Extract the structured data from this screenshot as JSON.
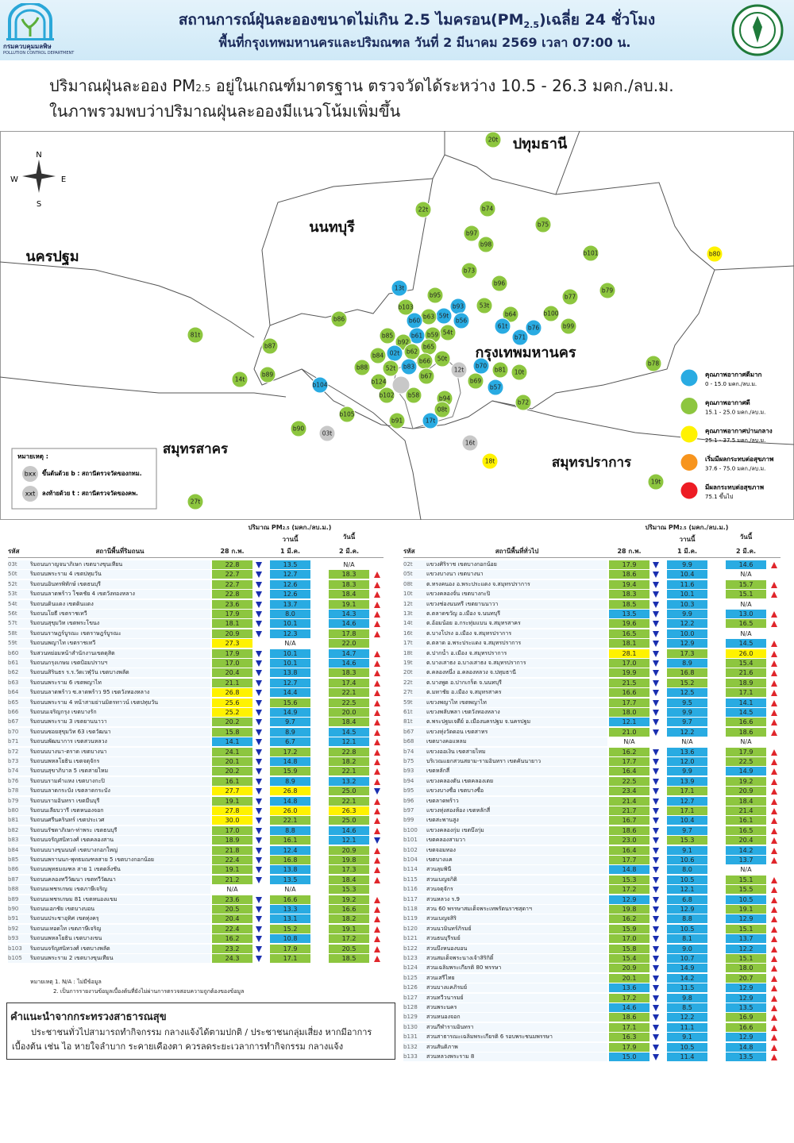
{
  "header": {
    "title_parts": [
      "สถานการณ์ฝุ่นละอองขนาดไม่เกิน 2.5 ไมครอน(PM",
      "2.5",
      ")เฉลี่ย 24 ชั่วโมง"
    ],
    "subtitle": "พื้นที่กรุงเทพมหานครและปริมณฑล วันที่ 2 มีนาคม 2569 เวลา 07:00 น.",
    "logo_th": "กรมควบคุมมลพิษ",
    "logo_en": "POLLUTION CONTROL DEPARTMENT"
  },
  "summary": {
    "line1_parts": [
      "ปริมาณฝุ่นละออง PM",
      "2.5",
      " อยู่ในเกณฑ์มาตรฐาน ตรวจวัดได้ระหว่าง 10.5 - 26.3 มคก./ลบ.ม."
    ],
    "line2": "ในภาพรวมพบว่าปริมาณฝุ่นละอองมีแนวโน้มเพิ่มขึ้น"
  },
  "map": {
    "regions": [
      "ปทุมธานี",
      "นนทบุรี",
      "นครปฐม",
      "กรุงเทพมหานคร",
      "สมุทรสาคร",
      "สมุทรปราการ"
    ],
    "compass": [
      "N",
      "W",
      "E",
      "S"
    ],
    "stations": [
      {
        "code": "20t",
        "color": "#8dc63f"
      },
      {
        "code": "22t",
        "color": "#8dc63f"
      },
      {
        "code": "b74",
        "color": "#8dc63f"
      },
      {
        "code": "b75",
        "color": "#8dc63f"
      },
      {
        "code": "b97",
        "color": "#8dc63f"
      },
      {
        "code": "b98",
        "color": "#8dc63f"
      },
      {
        "code": "b101",
        "color": "#8dc63f"
      },
      {
        "code": "b80",
        "color": "#fff200"
      },
      {
        "code": "b73",
        "color": "#8dc63f"
      },
      {
        "code": "13t",
        "color": "#29abe2"
      },
      {
        "code": "b96",
        "color": "#8dc63f"
      },
      {
        "code": "b95",
        "color": "#8dc63f"
      },
      {
        "code": "b77",
        "color": "#8dc63f"
      },
      {
        "code": "b79",
        "color": "#8dc63f"
      },
      {
        "code": "b103",
        "color": "#8dc63f"
      },
      {
        "code": "b93",
        "color": "#29abe2"
      },
      {
        "code": "53t",
        "color": "#8dc63f"
      },
      {
        "code": "59t",
        "color": "#29abe2"
      },
      {
        "code": "b56",
        "color": "#29abe2"
      },
      {
        "code": "b63",
        "color": "#8dc63f"
      },
      {
        "code": "b60",
        "color": "#29abe2"
      },
      {
        "code": "b86",
        "color": "#8dc63f"
      },
      {
        "code": "b64",
        "color": "#8dc63f"
      },
      {
        "code": "b100",
        "color": "#8dc63f"
      },
      {
        "code": "b76",
        "color": "#29abe2"
      },
      {
        "code": "61t",
        "color": "#29abe2"
      },
      {
        "code": "b99",
        "color": "#8dc63f"
      },
      {
        "code": "54t",
        "color": "#8dc63f"
      },
      {
        "code": "b59",
        "color": "#8dc63f"
      },
      {
        "code": "b61",
        "color": "#29abe2"
      },
      {
        "code": "b85",
        "color": "#8dc63f"
      },
      {
        "code": "81t",
        "color": "#8dc63f"
      },
      {
        "code": "b92",
        "color": "#8dc63f"
      },
      {
        "code": "b87",
        "color": "#8dc63f"
      },
      {
        "code": "b65",
        "color": "#8dc63f"
      },
      {
        "code": "b71",
        "color": "#29abe2"
      },
      {
        "code": "b62",
        "color": "#8dc63f"
      },
      {
        "code": "02t",
        "color": "#29abe2"
      },
      {
        "code": "b84",
        "color": "#8dc63f"
      },
      {
        "code": "50t",
        "color": "#8dc63f"
      },
      {
        "code": "b66",
        "color": "#8dc63f"
      },
      {
        "code": "b78",
        "color": "#8dc63f"
      },
      {
        "code": "b88",
        "color": "#8dc63f"
      },
      {
        "code": "52t",
        "color": "#8dc63f"
      },
      {
        "code": "b83",
        "color": "#29abe2"
      },
      {
        "code": "b70",
        "color": "#29abe2"
      },
      {
        "code": "b81",
        "color": "#8dc63f"
      },
      {
        "code": "10t",
        "color": "#8dc63f"
      },
      {
        "code": "12t",
        "color": "#c8c8c8"
      },
      {
        "code": "b67",
        "color": "#8dc63f"
      },
      {
        "code": "b89",
        "color": "#8dc63f"
      },
      {
        "code": "14t",
        "color": "#8dc63f"
      },
      {
        "code": "b124",
        "color": "#8dc63f"
      },
      {
        "code": "b69",
        "color": "#8dc63f"
      },
      {
        "code": "b57",
        "color": "#29abe2"
      },
      {
        "code": "b104",
        "color": "#29abe2"
      },
      {
        "code": "b102",
        "color": "#8dc63f"
      },
      {
        "code": "b58",
        "color": "#8dc63f"
      },
      {
        "code": "b94",
        "color": "#8dc63f"
      },
      {
        "code": "b72",
        "color": "#8dc63f"
      },
      {
        "code": "08t",
        "color": "#8dc63f"
      },
      {
        "code": "b105",
        "color": "#8dc63f"
      },
      {
        "code": "b91",
        "color": "#8dc63f"
      },
      {
        "code": "17t",
        "color": "#29abe2"
      },
      {
        "code": "b90",
        "color": "#8dc63f"
      },
      {
        "code": "03t",
        "color": "#c8c8c8"
      },
      {
        "code": "16t",
        "color": "#c8c8c8"
      },
      {
        "code": "18t",
        "color": "#fff200"
      },
      {
        "code": "19t",
        "color": "#8dc63f"
      },
      {
        "code": "27t",
        "color": "#8dc63f"
      }
    ],
    "legend": {
      "items": [
        {
          "label": "คุณภาพอากาศดีมาก",
          "range": "0 - 15.0 มคก./ลบ.ม.",
          "color": "#29abe2",
          "max": 15
        },
        {
          "label": "คุณภาพอากาศดี",
          "range": "15.1 - 25.0 มคก./ลบ.ม.",
          "color": "#8dc63f",
          "max": 25
        },
        {
          "label": "คุณภาพอากาศปานกลาง",
          "range": "25.1 - 37.5 มคก./ลบ.ม.",
          "color": "#fff200",
          "max": 37.5
        },
        {
          "label": "เริ่มมีผลกระทบต่อสุขภาพ",
          "range": "37.6 - 75.0 มคก./ลบ.ม.",
          "color": "#f7941d",
          "max": 75
        },
        {
          "label": "มีผลกระทบต่อสุขภาพ",
          "range": "75.1 ขึ้นไป",
          "color": "#ed1c24"
        }
      ]
    },
    "notes": {
      "title": "หมายเหตุ :",
      "items": [
        {
          "symbol": "bxx",
          "text": "ขึ้นต้นด้วย b : สถานีตรวจวัดของกทม."
        },
        {
          "symbol": "xxt",
          "text": "ลงท้ายด้วย t : สถานีตรวจวัดของคพ."
        }
      ]
    }
  },
  "tables": [
    {
      "header": {
        "code": "รหัส",
        "station": "สถานีพื้นที่ริมถนน",
        "unit_parts": [
          "ปริมาณ PM",
          "2.5",
          " (มคก./ลบ.ม.)"
        ],
        "d1": "28 ก.พ.",
        "yesterday": "วานนี้",
        "d2": "1 มี.ค.",
        "today": "วันนี้",
        "d3": "2 มี.ค."
      },
      "rows": [
        [
          "03t",
          "ริมถนนกาญจนาภิเษก เขตบางขุนเทียน",
          "22.8",
          "13.5",
          "N/A"
        ],
        [
          "50t",
          "ริมถนนพระราม 4 เขตปทุมวัน",
          "22.7",
          "12.7",
          "18.3"
        ],
        [
          "52t",
          "ริมถนนอินทรพิทักษ์ เขตธนบุรี",
          "22.7",
          "12.6",
          "18.3"
        ],
        [
          "53t",
          "ริมถนนลาดพร้าว โชคชัย 4 เขตวังทองหลาง",
          "22.8",
          "12.6",
          "18.4"
        ],
        [
          "54t",
          "ริมถนนดินแดง เขตดินแดง",
          "23.6",
          "13.7",
          "19.1"
        ],
        [
          "56t",
          "ริมถนนโยธี เขตราชเทวี",
          "17.9",
          "8.0",
          "14.3"
        ],
        [
          "57t",
          "ริมถนนสุขุมวิท เขตพระโขนง",
          "18.1",
          "10.1",
          "14.6"
        ],
        [
          "58t",
          "ริมถนนราษฎร์บูรณะ เขตราษฎร์บูรณะ",
          "20.9",
          "12.3",
          "17.8"
        ],
        [
          "59t",
          "ริมถนนพญาไท เขตราชเทวี",
          "27.3",
          "N/A",
          "22.0"
        ],
        [
          "b60",
          "ริมสวนหย่อมหน้าสำนักงานเขตดุสิต",
          "17.9",
          "10.1",
          "14.7"
        ],
        [
          "b61",
          "ริมถนนกรุงเกษม เขตป้อมปราบฯ",
          "17.0",
          "10.1",
          "14.6"
        ],
        [
          "b62",
          "ริมถนนสิรินธร ร.ร.วัดเวฬุวัน เขตบางพลัด",
          "20.4",
          "13.8",
          "18.3"
        ],
        [
          "b63",
          "ริมถนนพระราม 6 เขตพญาไท",
          "21.1",
          "12.7",
          "17.4"
        ],
        [
          "b64",
          "ริมถนนลาดพร้าว ซ.ลาดพร้าว 95 เขตวังทองหลาง",
          "26.8",
          "14.4",
          "22.1"
        ],
        [
          "b65",
          "ริมถนนพระราม 4 หน้าสามย่านมิตรทาวน์ เขตปทุมวัน",
          "25.6",
          "15.6",
          "22.5"
        ],
        [
          "b66",
          "ริมถนนเจริญกรุง เขตบางรัก",
          "25.2",
          "14.9",
          "20.0"
        ],
        [
          "b67",
          "ริมถนนพระราม 3 เขตยานนาวา",
          "20.2",
          "9.7",
          "18.4"
        ],
        [
          "b70",
          "ริมถนนซอยสุขุมวิท 63 เขตวัฒนา",
          "15.8",
          "8.9",
          "14.5"
        ],
        [
          "b71",
          "ริมถนนพัฒนาการ เขตสวนหลวง",
          "14.1",
          "6.7",
          "12.1"
        ],
        [
          "b72",
          "ริมถนนบางนา-ตราด เขตบางนา",
          "24.1",
          "17.2",
          "22.8"
        ],
        [
          "b73",
          "ริมถนนพหลโยธิน เขตจตุจักร",
          "20.1",
          "14.8",
          "18.2"
        ],
        [
          "b74",
          "ริมถนนสุขาภิบาล 5 เขตสายไหม",
          "20.2",
          "15.9",
          "22.1"
        ],
        [
          "b76",
          "ริมถนนรามคำแหง เขตบางกะปิ",
          "16.1",
          "8.9",
          "13.2"
        ],
        [
          "b78",
          "ริมถนนลาดกระบัง เขตลาดกระบัง",
          "27.7",
          "26.8",
          "25.0"
        ],
        [
          "b79",
          "ริมถนนรามอินทรา เขตมีนบุรี",
          "19.1",
          "14.8",
          "22.1"
        ],
        [
          "b80",
          "ริมถนนเลียบวารี เขตหนองจอก",
          "27.8",
          "26.0",
          "26.3"
        ],
        [
          "b81",
          "ริมถนนศรีนครินทร์ เขตประเวศ",
          "30.0",
          "22.1",
          "25.0"
        ],
        [
          "b82",
          "ริมถนนรัชดาภิเษก-ท่าพระ เขตธนบุรี",
          "17.0",
          "8.8",
          "14.6"
        ],
        [
          "b83",
          "ริมถนนจรัญสนิทวงศ์ เขตคลองสาน",
          "18.9",
          "16.1",
          "12.1"
        ],
        [
          "b84",
          "ริมถนนบางขุนนนท์ เขตบางกอกใหญ่",
          "21.8",
          "12.4",
          "20.9"
        ],
        [
          "b85",
          "ริมถนนพรานนก-พุทธมณฑลสาย 5 เขตบางกอกน้อย",
          "22.4",
          "16.8",
          "19.8"
        ],
        [
          "b86",
          "ริมถนนพุทธมณฑล สาย 1 เขตตลิ่งชัน",
          "19.1",
          "13.8",
          "17.3"
        ],
        [
          "b87",
          "ริมถนนคลองทวีวัฒนา เขตทวีวัฒนา",
          "21.2",
          "13.5",
          "18.4"
        ],
        [
          "b88",
          "ริมถนนเพชรเกษม เขตภาษีเจริญ",
          "N/A",
          "N/A",
          "15.3"
        ],
        [
          "b89",
          "ริมถนนเพชรเกษม 81 เขตหนองแขม",
          "23.6",
          "16.6",
          "19.2"
        ],
        [
          "b90",
          "ริมถนนเอกชัย เขตบางบอน",
          "20.5",
          "13.3",
          "16.6"
        ],
        [
          "b91",
          "ริมถนนประชาอุทิศ เขตทุ่งครุ",
          "20.4",
          "13.1",
          "18.2"
        ],
        [
          "b92",
          "ริมถนนเทอดไท เขตภาษีเจริญ",
          "22.4",
          "15.2",
          "19.1"
        ],
        [
          "b93",
          "ริมถนนพหลโยธิน เขตบางเขน",
          "16.2",
          "10.8",
          "17.2"
        ],
        [
          "b103",
          "ริมถนนจรัญสนิทวงศ์ เขตบางพลัด",
          "23.2",
          "17.9",
          "20.5"
        ],
        [
          "b105",
          "ริมถนนพระราม 2 เขตบางขุนเทียน",
          "24.3",
          "17.1",
          "18.5"
        ]
      ]
    },
    {
      "header": {
        "code": "รหัส",
        "station": "สถานีพื้นที่ทั่วไป",
        "unit_parts": [
          "ปริมาณ PM",
          "2.5",
          " (มคก./ลบ.ม.)"
        ],
        "d1": "28 ก.พ.",
        "yesterday": "วานนี้",
        "d2": "1 มี.ค.",
        "today": "วันนี้",
        "d3": "2 มี.ค."
      },
      "rows": [
        [
          "02t",
          "แขวงศิริราช เขตบางกอกน้อย",
          "17.9",
          "9.9",
          "14.6"
        ],
        [
          "05t",
          "แขวงบางนา เขตบางนา",
          "18.6",
          "10.4",
          "N/A"
        ],
        [
          "08t",
          "ต.ทรงคนอง อ.พระประแดง จ.สมุทรปราการ",
          "19.4",
          "11.6",
          "15.7"
        ],
        [
          "10t",
          "แขวงคลองจั่น เขตบางกะปิ",
          "18.3",
          "10.1",
          "15.1"
        ],
        [
          "12t",
          "แขวงช่องนนทรี เขตยานนาวา",
          "18.5",
          "10.3",
          "N/A"
        ],
        [
          "13t",
          "ต.ตลาดขวัญ อ.เมือง จ.นนทบุรี",
          "13.5",
          "9.9",
          "13.0"
        ],
        [
          "14t",
          "ต.อ้อมน้อย อ.กระทุ่มแบน จ.สมุทรสาคร",
          "19.6",
          "12.2",
          "16.5"
        ],
        [
          "16t",
          "ต.บางโปรง อ.เมือง จ.สมุทรปราการ",
          "16.5",
          "10.0",
          "N/A"
        ],
        [
          "17t",
          "ต.ตลาด อ.พระประแดง จ.สมุทรปราการ",
          "18.1",
          "12.9",
          "14.5"
        ],
        [
          "18t",
          "ต.ปากน้ำ อ.เมือง จ.สมุทรปราการ",
          "28.1",
          "17.3",
          "26.0"
        ],
        [
          "19t",
          "ต.บางเสาธง อ.บางเสาธง จ.สมุทรปราการ",
          "17.0",
          "8.9",
          "15.4"
        ],
        [
          "20t",
          "ต.คลองหนึ่ง อ.คลองหลวง จ.ปทุมธานี",
          "19.9",
          "16.8",
          "21.6"
        ],
        [
          "22t",
          "ต.บางพูด อ.ปากเกร็ด จ.นนทบุรี",
          "21.5",
          "15.2",
          "18.9"
        ],
        [
          "27t",
          "ต.มหาชัย อ.เมือง จ.สมุทรสาคร",
          "16.6",
          "12.5",
          "17.1"
        ],
        [
          "59t",
          "แขวงพญาไท เขตพญาไท",
          "17.7",
          "9.5",
          "14.1"
        ],
        [
          "61t",
          "แขวงพลับพลา เขตวังทองหลาง",
          "18.0",
          "9.9",
          "14.5"
        ],
        [
          "81t",
          "ต.พระปฐมเจดีย์ อ.เมืองนครปฐม จ.นครปฐม",
          "12.1",
          "9.7",
          "16.6"
        ],
        [
          "b67",
          "แขวงทุ่งวัดดอน เขตสาทร",
          "21.0",
          "12.2",
          "18.6"
        ],
        [
          "b68",
          "เขตบางคอแหลม",
          "N/A",
          "N/A",
          "N/A"
        ],
        [
          "b74",
          "แขวงออเงิน เขตสายไหม",
          "16.2",
          "13.6",
          "17.9"
        ],
        [
          "b75",
          "บริเวณแยกสวนสยาม-รามอินทรา เขตคันนายาว",
          "17.7",
          "12.0",
          "22.5"
        ],
        [
          "b93",
          "เขตหลักสี่",
          "16.4",
          "9.9",
          "14.9"
        ],
        [
          "b94",
          "แขวงคลองตัน เขตคลองเตย",
          "22.5",
          "13.9",
          "19.2"
        ],
        [
          "b95",
          "แขวงบางซื่อ เขตบางซื่อ",
          "23.4",
          "17.1",
          "20.9"
        ],
        [
          "b96",
          "เขตลาดพร้าว",
          "21.4",
          "12.7",
          "18.4"
        ],
        [
          "b97",
          "แขวงทุ่งสองห้อง เขตหลักสี่",
          "21.7",
          "17.1",
          "21.4"
        ],
        [
          "b99",
          "เขตสะพานสูง",
          "16.7",
          "10.4",
          "16.1"
        ],
        [
          "b100",
          "แขวงคลองกุ่ม เขตบึงกุ่ม",
          "18.6",
          "9.7",
          "16.5"
        ],
        [
          "b101",
          "เขตคลองสามวา",
          "23.0",
          "15.3",
          "20.4"
        ],
        [
          "b102",
          "เขตจอมทอง",
          "16.4",
          "9.1",
          "14.2"
        ],
        [
          "b104",
          "เขตบางแค",
          "17.7",
          "10.6",
          "13.7"
        ],
        [
          "b114",
          "สวนลุมพินี",
          "14.8",
          "8.0",
          "N/A"
        ],
        [
          "b115",
          "สวนเบญจกิติ",
          "15.3",
          "10.5",
          "15.1"
        ],
        [
          "b116",
          "สวนจตุจักร",
          "17.2",
          "12.1",
          "15.5"
        ],
        [
          "b117",
          "สวนหลวง ร.9",
          "12.9",
          "6.8",
          "10.5"
        ],
        [
          "b118",
          "สวน 60 พรรษาสมเด็จพระเทพรัตนราชสุดาฯ",
          "19.8",
          "12.9",
          "19.1"
        ],
        [
          "b119",
          "สวนเบญจสิริ",
          "16.2",
          "8.8",
          "12.9"
        ],
        [
          "b120",
          "สวนนวมินทร์ภิรมย์",
          "15.9",
          "10.5",
          "15.1"
        ],
        [
          "b121",
          "สวนธนบุรีรมย์",
          "17.0",
          "8.1",
          "13.7"
        ],
        [
          "b122",
          "สวนบึงหนองบอน",
          "15.8",
          "9.0",
          "12.2"
        ],
        [
          "b123",
          "สวนสมเด็จพระนางเจ้าสิริกิติ์",
          "15.4",
          "10.7",
          "15.1"
        ],
        [
          "b124",
          "สวนเฉลิมพระเกียรติ 80 พรรษา",
          "20.9",
          "14.9",
          "18.0"
        ],
        [
          "b125",
          "สวนเสรีไทย",
          "20.1",
          "14.2",
          "20.7"
        ],
        [
          "b126",
          "สวนบางแคภิรมย์",
          "13.6",
          "11.5",
          "12.9"
        ],
        [
          "b127",
          "สวนทวีวนารมย์",
          "17.2",
          "9.8",
          "12.9"
        ],
        [
          "b128",
          "สวนพระนคร",
          "14.6",
          "8.5",
          "13.5"
        ],
        [
          "b129",
          "สวนหนองจอก",
          "18.6",
          "12.2",
          "16.9"
        ],
        [
          "b130",
          "สวนกีฬารามอินทรา",
          "17.1",
          "11.1",
          "16.6"
        ],
        [
          "b131",
          "สวนสาธารณะเฉลิมพระเกียรติ 6 รอบพระชนมพรรษา",
          "16.3",
          "9.1",
          "12.9"
        ],
        [
          "b132",
          "สวนสันติภาพ",
          "17.9",
          "10.5",
          "14.8"
        ],
        [
          "b133",
          "สวนหลวงพระราม 8",
          "15.0",
          "11.4",
          "13.5"
        ]
      ]
    }
  ],
  "table_notes": [
    "หมายเหตุ 1. N/A : ไม่มีข้อมูล",
    "2. เป็นการรายงานข้อมูลเบื้องต้นที่ยังไม่ผ่านการตรวจสอบความถูกต้องของข้อมูล"
  ],
  "advice": {
    "title": "คำแนะนำจากกระทรวงสาธารณสุข",
    "text": "ประชาชนทั่วไปสามารถทำกิจกรรม กลางแจ้งได้ตามปกติ / ประชาชนกลุ่มเสี่ยง หากมีอาการเบื้องต้น เช่น ไอ หายใจลำบาก ระคายเคืองตา ควรลดระยะเวลาการทำกิจกรรม กลางแจ้ง"
  }
}
